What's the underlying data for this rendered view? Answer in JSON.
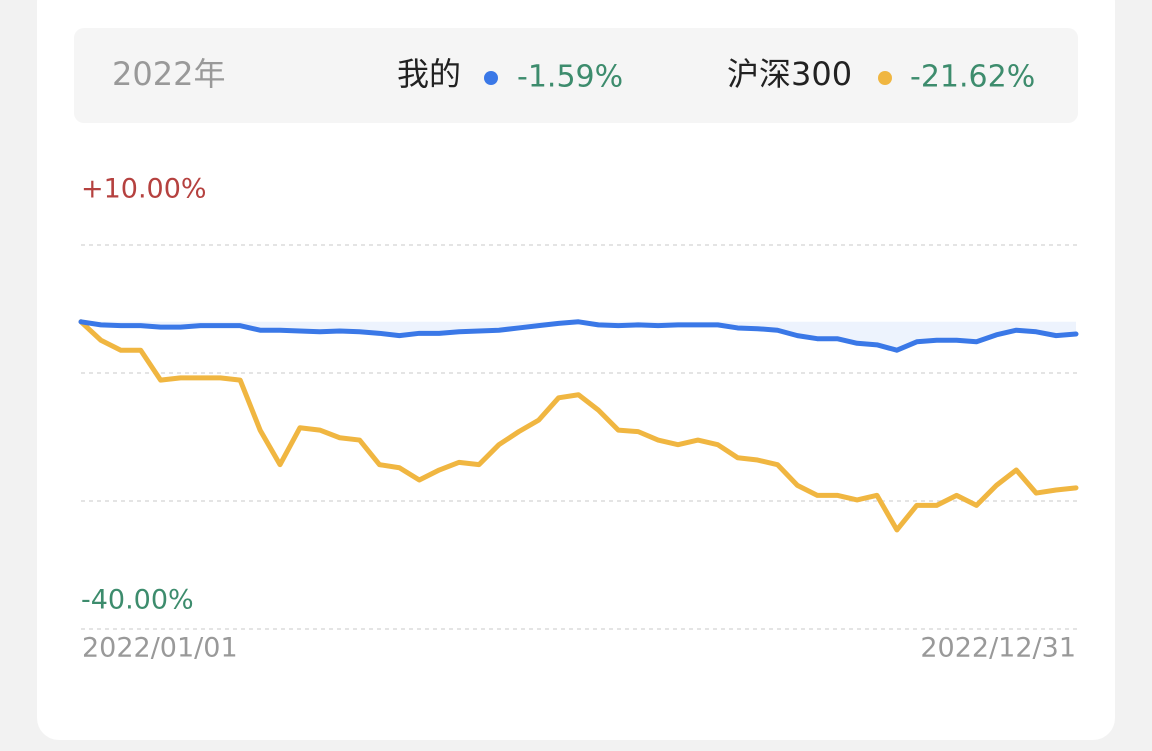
{
  "chart_data": {
    "type": "line",
    "title": "2022年",
    "x": [
      "2022/01/01",
      null,
      null,
      null,
      null,
      null,
      null,
      null,
      null,
      null,
      null,
      null,
      null,
      null,
      null,
      null,
      null,
      null,
      null,
      null,
      null,
      null,
      null,
      null,
      null,
      null,
      null,
      null,
      null,
      null,
      null,
      null,
      null,
      null,
      null,
      null,
      null,
      null,
      null,
      null,
      null,
      null,
      null,
      null,
      null,
      null,
      null,
      null,
      null,
      null,
      "2022/12/31"
    ],
    "series": [
      {
        "name": "我的",
        "color": "#3a78e7",
        "area": true,
        "total": -1.59,
        "total_label": "-1.59%",
        "values": [
          0,
          -0.4,
          -0.5,
          -0.5,
          -0.7,
          -0.7,
          -0.5,
          -0.5,
          -0.5,
          -1.1,
          -1.1,
          -1.2,
          -1.3,
          -1.2,
          -1.3,
          -1.5,
          -1.8,
          -1.5,
          -1.5,
          -1.3,
          -1.2,
          -1.1,
          -0.8,
          -0.5,
          -0.2,
          0,
          -0.4,
          -0.5,
          -0.4,
          -0.5,
          -0.4,
          -0.4,
          -0.4,
          -0.8,
          -0.9,
          -1.1,
          -1.8,
          -2.2,
          -2.2,
          -2.8,
          -3,
          -3.7,
          -2.6,
          -2.4,
          -2.4,
          -2.6,
          -1.7,
          -1.1,
          -1.3,
          -1.8,
          -1.59
        ]
      },
      {
        "name": "沪深300",
        "color": "#f0b641",
        "area": false,
        "total": -21.62,
        "total_label": "-21.62%",
        "values": [
          0,
          -2.4,
          -3.7,
          -3.7,
          -7.6,
          -7.3,
          -7.3,
          -7.3,
          -7.6,
          -14.1,
          -18.6,
          -13.8,
          -14.1,
          -15.1,
          -15.4,
          -18.6,
          -19,
          -20.6,
          -19.3,
          -18.3,
          -18.6,
          -16,
          -14.3,
          -12.8,
          -9.9,
          -9.5,
          -11.5,
          -14.1,
          -14.3,
          -15.4,
          -16,
          -15.4,
          -16,
          -17.7,
          -18,
          -18.6,
          -21.3,
          -22.6,
          -22.6,
          -23.2,
          -22.6,
          -27.1,
          -23.9,
          -23.9,
          -22.6,
          -23.9,
          -21.3,
          -19.3,
          -22.3,
          -21.9,
          -21.62
        ]
      }
    ],
    "ylim": [
      -40,
      10
    ],
    "yticks": [
      {
        "value": 10,
        "label": "+10.00%"
      },
      {
        "value": -40,
        "label": "-40.00%"
      }
    ],
    "gridlines": [
      10,
      -6.67,
      -23.33,
      -40
    ]
  }
}
